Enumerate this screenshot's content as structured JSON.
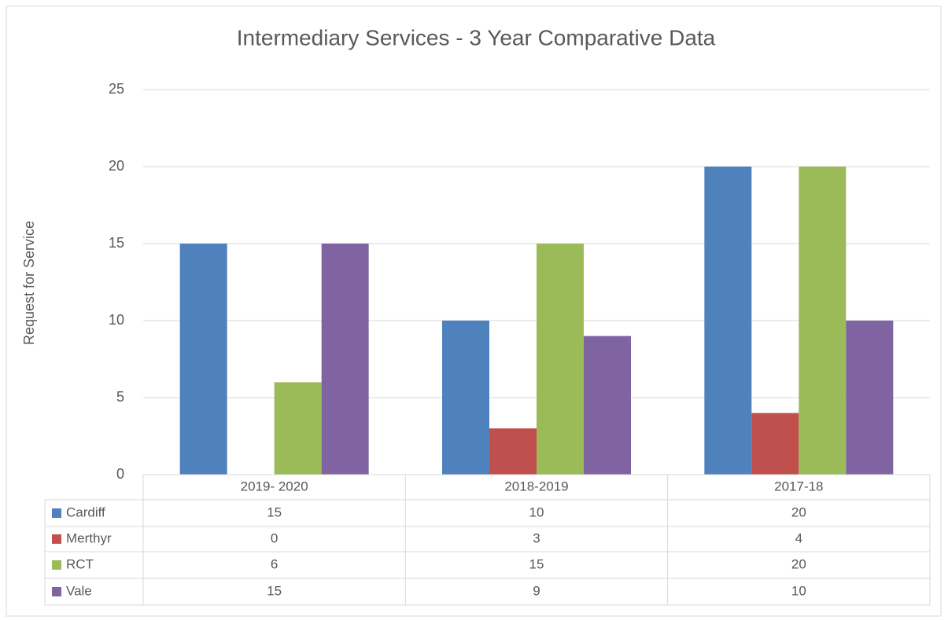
{
  "chart_data": {
    "type": "bar",
    "title": "Intermediary Services - 3 Year Comparative Data",
    "y_label": "Request for Service",
    "categories": [
      "2019- 2020",
      "2018-2019",
      "2017-18"
    ],
    "series": [
      {
        "name": "Cardiff",
        "color": "#4f81bd",
        "values": [
          15,
          10,
          20
        ]
      },
      {
        "name": "Merthyr",
        "color": "#c0504d",
        "values": [
          0,
          3,
          4
        ]
      },
      {
        "name": "RCT",
        "color": "#9bbb59",
        "values": [
          6,
          15,
          20
        ]
      },
      {
        "name": "Vale",
        "color": "#8064a2",
        "values": [
          15,
          9,
          10
        ]
      }
    ],
    "ylim": [
      0,
      25
    ],
    "yticks": [
      0,
      5,
      10,
      15,
      20,
      25
    ],
    "grid": true,
    "data_table": true
  }
}
